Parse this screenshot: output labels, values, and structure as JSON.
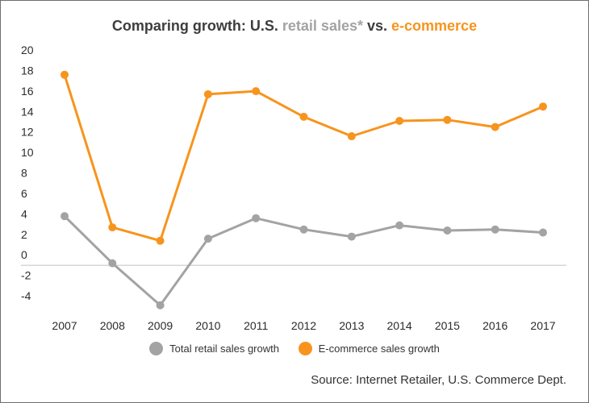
{
  "title": {
    "prefix": "Comparing growth: U.S. ",
    "retail": "retail sales*",
    "mid": " vs. ",
    "ecommerce": "e-commerce"
  },
  "legend": {
    "retail_label": "Total retail sales growth",
    "ecommerce_label": "E-commerce sales growth"
  },
  "source": "Source: Internet Retailer, U.S. Commerce Dept.",
  "colors": {
    "retail": "#a3a3a3",
    "ecommerce": "#f7941d",
    "zero_line": "#c8c8c8",
    "title": "#3d3d3d"
  },
  "chart_data": {
    "type": "line",
    "x": [
      "2007",
      "2008",
      "2009",
      "2010",
      "2011",
      "2012",
      "2013",
      "2014",
      "2015",
      "2016",
      "2017"
    ],
    "series": [
      {
        "name": "Total retail sales growth",
        "color": "#a3a3a3",
        "values": [
          4.8,
          0.2,
          -3.9,
          2.6,
          4.6,
          3.5,
          2.8,
          3.9,
          3.4,
          3.5,
          3.2
        ]
      },
      {
        "name": "E-commerce sales growth",
        "color": "#f7941d",
        "values": [
          18.6,
          3.7,
          2.4,
          16.7,
          17.0,
          14.5,
          12.6,
          14.1,
          14.2,
          13.5,
          15.5
        ]
      }
    ],
    "yticks": [
      20,
      18,
      16,
      14,
      12,
      10,
      8,
      6,
      4,
      2,
      0,
      -2,
      -4
    ],
    "ylim": [
      -4,
      20
    ],
    "grid": false,
    "legend_position": "bottom"
  }
}
